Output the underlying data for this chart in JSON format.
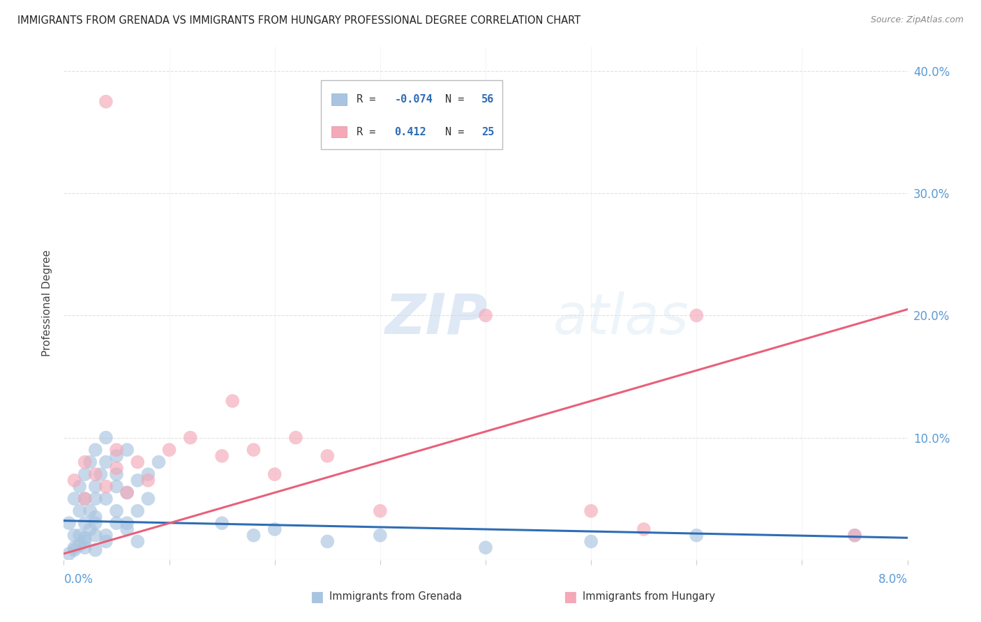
{
  "title": "IMMIGRANTS FROM GRENADA VS IMMIGRANTS FROM HUNGARY PROFESSIONAL DEGREE CORRELATION CHART",
  "source": "Source: ZipAtlas.com",
  "ylabel": "Professional Degree",
  "xlim": [
    0.0,
    0.08
  ],
  "ylim": [
    0.0,
    0.42
  ],
  "grenada_color": "#a8c4e0",
  "hungary_color": "#f4a8b8",
  "grenada_line_color": "#2e6db4",
  "hungary_line_color": "#e8607a",
  "grenada_R": -0.074,
  "grenada_N": 56,
  "hungary_R": 0.412,
  "hungary_N": 25,
  "background_color": "#ffffff",
  "grid_color": "#e0e0e0",
  "axis_label_color": "#5b9bd5",
  "watermark": "ZIPatlas",
  "grenada_scatter_x": [
    0.0005,
    0.001,
    0.001,
    0.0015,
    0.0015,
    0.002,
    0.002,
    0.002,
    0.0025,
    0.0025,
    0.003,
    0.003,
    0.003,
    0.003,
    0.0035,
    0.004,
    0.004,
    0.004,
    0.005,
    0.005,
    0.005,
    0.005,
    0.006,
    0.006,
    0.006,
    0.007,
    0.007,
    0.008,
    0.008,
    0.009,
    0.001,
    0.0015,
    0.002,
    0.0025,
    0.003,
    0.003,
    0.004,
    0.005,
    0.006,
    0.007,
    0.0005,
    0.001,
    0.0015,
    0.002,
    0.002,
    0.003,
    0.004,
    0.015,
    0.018,
    0.02,
    0.025,
    0.03,
    0.04,
    0.05,
    0.06,
    0.075
  ],
  "grenada_scatter_y": [
    0.03,
    0.05,
    0.02,
    0.06,
    0.04,
    0.07,
    0.03,
    0.05,
    0.08,
    0.04,
    0.06,
    0.09,
    0.05,
    0.03,
    0.07,
    0.08,
    0.05,
    0.1,
    0.085,
    0.06,
    0.04,
    0.07,
    0.09,
    0.055,
    0.03,
    0.065,
    0.04,
    0.07,
    0.05,
    0.08,
    0.01,
    0.02,
    0.015,
    0.025,
    0.02,
    0.035,
    0.02,
    0.03,
    0.025,
    0.015,
    0.005,
    0.008,
    0.012,
    0.01,
    0.018,
    0.008,
    0.015,
    0.03,
    0.02,
    0.025,
    0.015,
    0.02,
    0.01,
    0.015,
    0.02,
    0.02
  ],
  "hungary_scatter_x": [
    0.001,
    0.002,
    0.002,
    0.003,
    0.004,
    0.004,
    0.005,
    0.005,
    0.006,
    0.007,
    0.008,
    0.01,
    0.012,
    0.015,
    0.016,
    0.018,
    0.02,
    0.022,
    0.025,
    0.03,
    0.04,
    0.05,
    0.055,
    0.06,
    0.075
  ],
  "hungary_scatter_y": [
    0.065,
    0.05,
    0.08,
    0.07,
    0.06,
    0.375,
    0.075,
    0.09,
    0.055,
    0.08,
    0.065,
    0.09,
    0.1,
    0.085,
    0.13,
    0.09,
    0.07,
    0.1,
    0.085,
    0.04,
    0.2,
    0.04,
    0.025,
    0.2,
    0.02
  ],
  "grenada_line_x": [
    0.0,
    0.08
  ],
  "grenada_line_y": [
    0.032,
    0.018
  ],
  "hungary_line_x": [
    0.0,
    0.08
  ],
  "hungary_line_y": [
    0.005,
    0.205
  ]
}
